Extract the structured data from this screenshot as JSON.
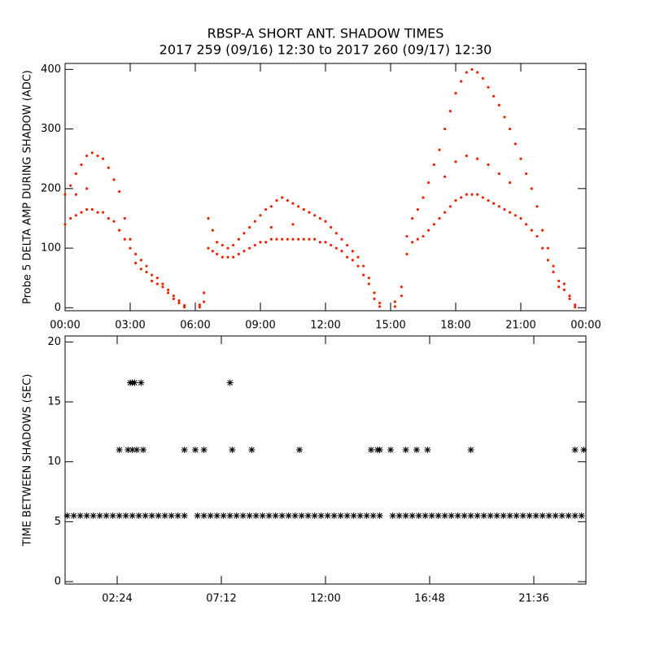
{
  "chart_data": [
    {
      "type": "scatter",
      "title": "RBSP-A SHORT ANT. SHADOW TIMES",
      "subtitle": "2017 259 (09/16) 12:30 to 2017 260 (09/17) 12:30",
      "ylabel": "Probe 5 DELTA AMP DURING SHADOW (ADC)",
      "color": "#ee2200",
      "marker": "dot",
      "xlim": [
        0,
        24
      ],
      "ylim": [
        -5,
        410
      ],
      "xticks": [
        {
          "value": 0,
          "label": "00:00"
        },
        {
          "value": 3,
          "label": "03:00"
        },
        {
          "value": 6,
          "label": "06:00"
        },
        {
          "value": 9,
          "label": "09:00"
        },
        {
          "value": 12,
          "label": "12:00"
        },
        {
          "value": 15,
          "label": "15:00"
        },
        {
          "value": 18,
          "label": "18:00"
        },
        {
          "value": 21,
          "label": "21:00"
        },
        {
          "value": 24,
          "label": "00:00"
        }
      ],
      "yticks": [
        0,
        100,
        200,
        300,
        400
      ],
      "x": [
        0,
        0,
        0.25,
        0.25,
        0.5,
        0.5,
        0.75,
        0.75,
        1,
        1,
        1.25,
        1.25,
        1.5,
        1.5,
        1.75,
        1.75,
        2,
        2,
        2.25,
        2.25,
        2.5,
        2.5,
        2.75,
        2.75,
        3,
        3,
        3.25,
        3.25,
        3.5,
        3.5,
        3.75,
        3.75,
        4,
        4,
        4.25,
        4.25,
        4.5,
        4.5,
        4.75,
        4.75,
        5,
        5,
        5.25,
        5.25,
        5.5,
        5.5,
        6.2,
        6.2,
        6.4,
        6.4,
        6.6,
        6.6,
        6.8,
        6.8,
        7,
        7,
        7.25,
        7.25,
        7.5,
        7.5,
        7.75,
        7.75,
        8,
        8,
        8.25,
        8.25,
        8.5,
        8.5,
        8.75,
        8.75,
        9,
        9,
        9.25,
        9.25,
        9.5,
        9.5,
        9.75,
        9.75,
        10,
        10,
        10.25,
        10.25,
        10.5,
        10.5,
        10.75,
        10.75,
        11,
        11,
        11.25,
        11.25,
        11.5,
        11.5,
        11.75,
        11.75,
        12,
        12,
        12.25,
        12.25,
        12.5,
        12.5,
        12.75,
        12.75,
        13,
        13,
        13.25,
        13.25,
        13.5,
        13.5,
        13.75,
        13.75,
        14,
        14,
        14.25,
        14.25,
        14.5,
        14.5,
        15.2,
        15.2,
        15.5,
        15.5,
        15.75,
        15.75,
        16,
        16,
        16.25,
        16.25,
        16.5,
        16.5,
        16.75,
        16.75,
        17,
        17,
        17.25,
        17.25,
        17.5,
        17.5,
        17.75,
        17.75,
        18,
        18,
        18.25,
        18.25,
        18.5,
        18.5,
        18.75,
        18.75,
        19,
        19,
        19.25,
        19.25,
        19.5,
        19.5,
        19.75,
        19.75,
        20,
        20,
        20.25,
        20.25,
        20.5,
        20.5,
        20.75,
        20.75,
        21,
        21,
        21.25,
        21.25,
        21.5,
        21.5,
        21.75,
        21.75,
        22,
        22,
        22.25,
        22.25,
        22.5,
        22.5,
        22.75,
        22.75,
        23,
        23,
        23.25,
        23.25,
        23.5,
        23.5,
        17.5,
        18,
        18.5,
        19,
        19.5,
        20,
        20.5,
        0.5,
        1,
        9.5,
        10.5
      ],
      "values": [
        190,
        140,
        205,
        150,
        225,
        155,
        240,
        160,
        255,
        165,
        260,
        165,
        255,
        160,
        250,
        160,
        235,
        150,
        215,
        145,
        195,
        130,
        150,
        115,
        115,
        100,
        90,
        75,
        80,
        65,
        70,
        60,
        55,
        45,
        50,
        40,
        40,
        35,
        30,
        25,
        20,
        15,
        12,
        8,
        4,
        1,
        5,
        1,
        25,
        10,
        150,
        100,
        130,
        95,
        110,
        90,
        105,
        85,
        100,
        85,
        105,
        85,
        115,
        90,
        125,
        95,
        135,
        100,
        145,
        105,
        155,
        110,
        165,
        110,
        170,
        115,
        180,
        115,
        185,
        115,
        180,
        115,
        175,
        115,
        170,
        115,
        165,
        115,
        160,
        115,
        155,
        115,
        150,
        110,
        145,
        110,
        135,
        105,
        125,
        100,
        115,
        95,
        105,
        85,
        95,
        80,
        85,
        70,
        70,
        55,
        50,
        40,
        25,
        15,
        8,
        2,
        10,
        2,
        35,
        20,
        120,
        90,
        150,
        110,
        165,
        115,
        185,
        120,
        210,
        130,
        240,
        140,
        265,
        150,
        300,
        160,
        330,
        170,
        360,
        180,
        380,
        185,
        395,
        190,
        400,
        190,
        395,
        190,
        385,
        185,
        370,
        180,
        355,
        175,
        340,
        170,
        320,
        165,
        300,
        160,
        275,
        155,
        250,
        150,
        225,
        140,
        200,
        130,
        170,
        120,
        130,
        100,
        100,
        80,
        70,
        60,
        45,
        35,
        40,
        30,
        20,
        15,
        5,
        1,
        220,
        245,
        255,
        250,
        240,
        225,
        210,
        190,
        200,
        135,
        140
      ]
    },
    {
      "type": "scatter",
      "ylabel": "TIME BETWEEN SHADOWS (SEC)",
      "color": "#000000",
      "marker": "asterisk",
      "xlim": [
        0,
        24
      ],
      "ylim": [
        -0.2,
        20.5
      ],
      "xticks": [
        {
          "value": 2.4,
          "label": "02:24"
        },
        {
          "value": 7.2,
          "label": "07:12"
        },
        {
          "value": 12,
          "label": "12:00"
        },
        {
          "value": 16.8,
          "label": "16:48"
        },
        {
          "value": 21.6,
          "label": "21:36"
        }
      ],
      "yticks": [
        0,
        5,
        10,
        15,
        20
      ],
      "x": [
        0.1,
        0.4,
        0.7,
        1.0,
        1.3,
        1.6,
        1.9,
        2.2,
        2.5,
        2.8,
        3.1,
        3.4,
        3.7,
        4.0,
        4.3,
        4.6,
        4.9,
        5.2,
        5.5,
        6.1,
        6.4,
        6.7,
        7.0,
        7.3,
        7.6,
        7.9,
        8.2,
        8.5,
        8.8,
        9.1,
        9.4,
        9.7,
        10.0,
        10.3,
        10.6,
        10.9,
        11.2,
        11.5,
        11.8,
        12.1,
        12.4,
        12.7,
        13.0,
        13.3,
        13.6,
        13.9,
        14.2,
        14.5,
        15.1,
        15.4,
        15.7,
        16.0,
        16.3,
        16.6,
        16.9,
        17.2,
        17.5,
        17.8,
        18.1,
        18.4,
        18.7,
        19.0,
        19.3,
        19.6,
        19.9,
        20.2,
        20.5,
        20.8,
        21.1,
        21.4,
        21.7,
        22.0,
        22.3,
        22.6,
        22.9,
        23.2,
        23.5,
        23.8,
        2.5,
        2.9,
        3.1,
        3.3,
        3.6,
        5.5,
        6.0,
        6.4,
        7.7,
        8.6,
        10.8,
        14.1,
        14.4,
        14.5,
        15.0,
        15.7,
        16.2,
        16.7,
        18.7,
        23.5,
        23.9,
        3.0,
        3.1,
        3.2,
        3.5,
        7.6
      ],
      "values": [
        5.5,
        5.5,
        5.5,
        5.5,
        5.5,
        5.5,
        5.5,
        5.5,
        5.5,
        5.5,
        5.5,
        5.5,
        5.5,
        5.5,
        5.5,
        5.5,
        5.5,
        5.5,
        5.5,
        5.5,
        5.5,
        5.5,
        5.5,
        5.5,
        5.5,
        5.5,
        5.5,
        5.5,
        5.5,
        5.5,
        5.5,
        5.5,
        5.5,
        5.5,
        5.5,
        5.5,
        5.5,
        5.5,
        5.5,
        5.5,
        5.5,
        5.5,
        5.5,
        5.5,
        5.5,
        5.5,
        5.5,
        5.5,
        5.5,
        5.5,
        5.5,
        5.5,
        5.5,
        5.5,
        5.5,
        5.5,
        5.5,
        5.5,
        5.5,
        5.5,
        5.5,
        5.5,
        5.5,
        5.5,
        5.5,
        5.5,
        5.5,
        5.5,
        5.5,
        5.5,
        5.5,
        5.5,
        5.5,
        5.5,
        5.5,
        5.5,
        5.5,
        5.5,
        11,
        11,
        11,
        11,
        11,
        11,
        11,
        11,
        11,
        11,
        11,
        11,
        11,
        11,
        11,
        11,
        11,
        11,
        11,
        11,
        11,
        16.6,
        16.6,
        16.6,
        16.6,
        16.6
      ]
    }
  ]
}
